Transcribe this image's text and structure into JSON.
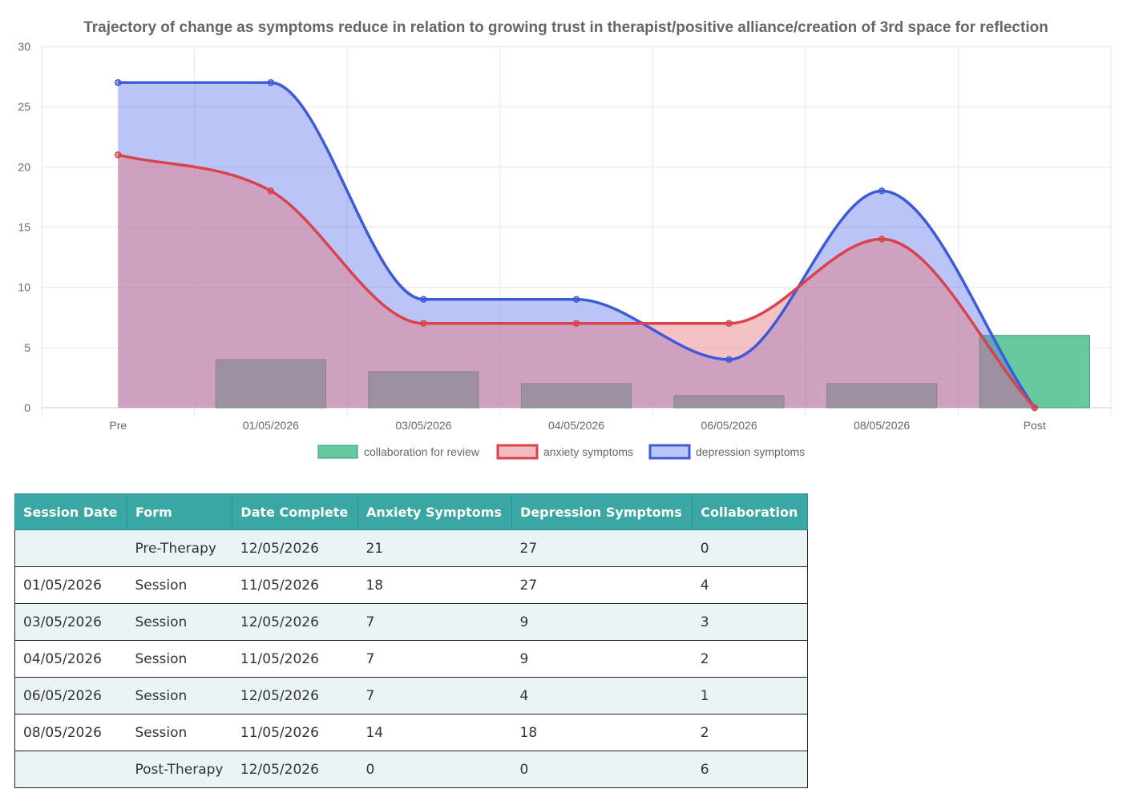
{
  "chart_data": {
    "type": "line",
    "title": "Trajectory of change as symptoms reduce in relation to growing trust in therapist/positive alliance/creation of 3rd space for reflection",
    "categories": [
      "Pre",
      "01/05/2026",
      "03/05/2026",
      "04/05/2026",
      "06/05/2026",
      "08/05/2026",
      "Post"
    ],
    "ylim": [
      0,
      30
    ],
    "yticks": [
      "0",
      "5",
      "10",
      "15",
      "20",
      "25",
      "30"
    ],
    "grid": true,
    "legend_position": "bottom",
    "series": [
      {
        "name": "collaboration for review",
        "kind": "bar",
        "values": [
          0,
          4,
          3,
          2,
          1,
          2,
          6
        ],
        "color": "#4bc08f"
      },
      {
        "name": "anxiety symptoms",
        "kind": "area-line",
        "values": [
          21,
          18,
          7,
          7,
          7,
          14,
          0
        ],
        "color": "#d9434b"
      },
      {
        "name": "depression symptoms",
        "kind": "area-line",
        "values": [
          27,
          27,
          9,
          9,
          4,
          18,
          0
        ],
        "color": "#3d5bd9"
      }
    ]
  },
  "table": {
    "headers": [
      "Session Date",
      "Form",
      "Date Complete",
      "Anxiety Symptoms",
      "Depression Symptoms",
      "Collaboration"
    ],
    "rows": [
      [
        "",
        "Pre-Therapy",
        "12/05/2026",
        "21",
        "27",
        "0"
      ],
      [
        "01/05/2026",
        "Session",
        "11/05/2026",
        "18",
        "27",
        "4"
      ],
      [
        "03/05/2026",
        "Session",
        "12/05/2026",
        "7",
        "9",
        "3"
      ],
      [
        "04/05/2026",
        "Session",
        "11/05/2026",
        "7",
        "9",
        "2"
      ],
      [
        "06/05/2026",
        "Session",
        "12/05/2026",
        "7",
        "4",
        "1"
      ],
      [
        "08/05/2026",
        "Session",
        "11/05/2026",
        "14",
        "18",
        "2"
      ],
      [
        "",
        "Post-Therapy",
        "12/05/2026",
        "0",
        "0",
        "6"
      ]
    ]
  }
}
